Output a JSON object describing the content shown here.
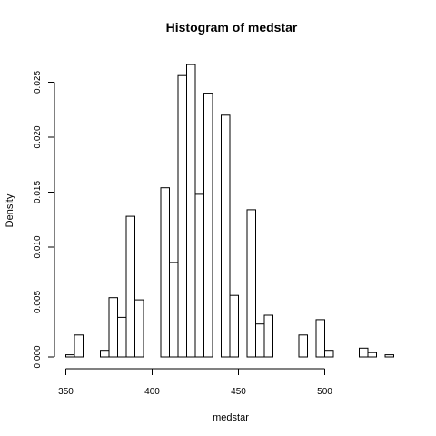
{
  "chart_data": {
    "type": "bar",
    "title": "Histogram of medstar",
    "xlabel": "medstar",
    "ylabel": "Density",
    "xlim": [
      350,
      540
    ],
    "ylim": [
      0,
      0.0265
    ],
    "x_ticks": [
      350,
      400,
      450,
      500
    ],
    "x_tick_labels": [
      "350",
      "400",
      "450",
      "500"
    ],
    "y_ticks": [
      0,
      0.005,
      0.01,
      0.015,
      0.02,
      0.025
    ],
    "y_tick_labels": [
      "0.000",
      "0.005",
      "0.010",
      "0.015",
      "0.020",
      "0.025"
    ],
    "bin_width": 5,
    "bins": [
      {
        "start": 350,
        "value": 0.0002
      },
      {
        "start": 355,
        "value": 0.002
      },
      {
        "start": 360,
        "value": 0.0
      },
      {
        "start": 365,
        "value": 0.0
      },
      {
        "start": 370,
        "value": 0.0006
      },
      {
        "start": 375,
        "value": 0.0054
      },
      {
        "start": 380,
        "value": 0.0036
      },
      {
        "start": 385,
        "value": 0.0128
      },
      {
        "start": 390,
        "value": 0.0052
      },
      {
        "start": 395,
        "value": 0.0
      },
      {
        "start": 400,
        "value": 0.0
      },
      {
        "start": 405,
        "value": 0.0154
      },
      {
        "start": 410,
        "value": 0.0086
      },
      {
        "start": 415,
        "value": 0.0256
      },
      {
        "start": 420,
        "value": 0.0266
      },
      {
        "start": 425,
        "value": 0.0148
      },
      {
        "start": 430,
        "value": 0.024
      },
      {
        "start": 435,
        "value": 0.0
      },
      {
        "start": 440,
        "value": 0.022
      },
      {
        "start": 445,
        "value": 0.0056
      },
      {
        "start": 450,
        "value": 0.0
      },
      {
        "start": 455,
        "value": 0.0134
      },
      {
        "start": 460,
        "value": 0.003
      },
      {
        "start": 465,
        "value": 0.0038
      },
      {
        "start": 470,
        "value": 0.0
      },
      {
        "start": 475,
        "value": 0.0
      },
      {
        "start": 480,
        "value": 0.0
      },
      {
        "start": 485,
        "value": 0.002
      },
      {
        "start": 490,
        "value": 0.0
      },
      {
        "start": 495,
        "value": 0.0034
      },
      {
        "start": 500,
        "value": 0.0006
      },
      {
        "start": 505,
        "value": 0.0
      },
      {
        "start": 510,
        "value": 0.0
      },
      {
        "start": 515,
        "value": 0.0
      },
      {
        "start": 520,
        "value": 0.0008
      },
      {
        "start": 525,
        "value": 0.0004
      },
      {
        "start": 530,
        "value": 0.0
      },
      {
        "start": 535,
        "value": 0.0002
      }
    ],
    "grid": false,
    "legend": "none"
  }
}
